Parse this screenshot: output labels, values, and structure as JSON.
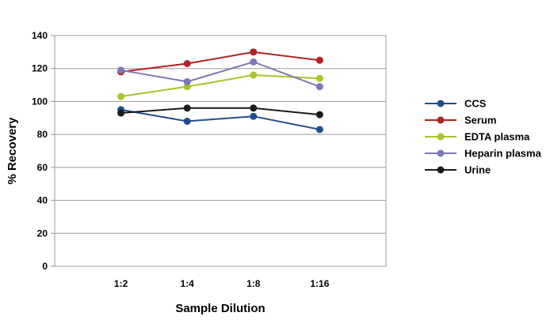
{
  "chart_data": {
    "type": "line",
    "title": "",
    "xlabel": "Sample Dilution",
    "ylabel": "% Recovery",
    "categories": [
      "1:2",
      "1:4",
      "1:8",
      "1:16"
    ],
    "ylim": [
      0,
      140
    ],
    "yticks": [
      0,
      20,
      40,
      60,
      80,
      100,
      120,
      140
    ],
    "grid": true,
    "legend_position": "right",
    "series": [
      {
        "name": "CCS",
        "color": "#1F4E8C",
        "values": [
          95,
          88,
          91,
          83
        ]
      },
      {
        "name": "Serum",
        "color": "#B22222",
        "values": [
          118,
          123,
          130,
          125
        ]
      },
      {
        "name": "EDTA plasma",
        "color": "#A8C42A",
        "values": [
          103,
          109,
          116,
          114
        ]
      },
      {
        "name": "Heparin plasma",
        "color": "#7B78B8",
        "values": [
          119,
          112,
          124,
          109
        ]
      },
      {
        "name": "Urine",
        "color": "#1A1A1A",
        "values": [
          93,
          96,
          96,
          92
        ]
      }
    ]
  }
}
